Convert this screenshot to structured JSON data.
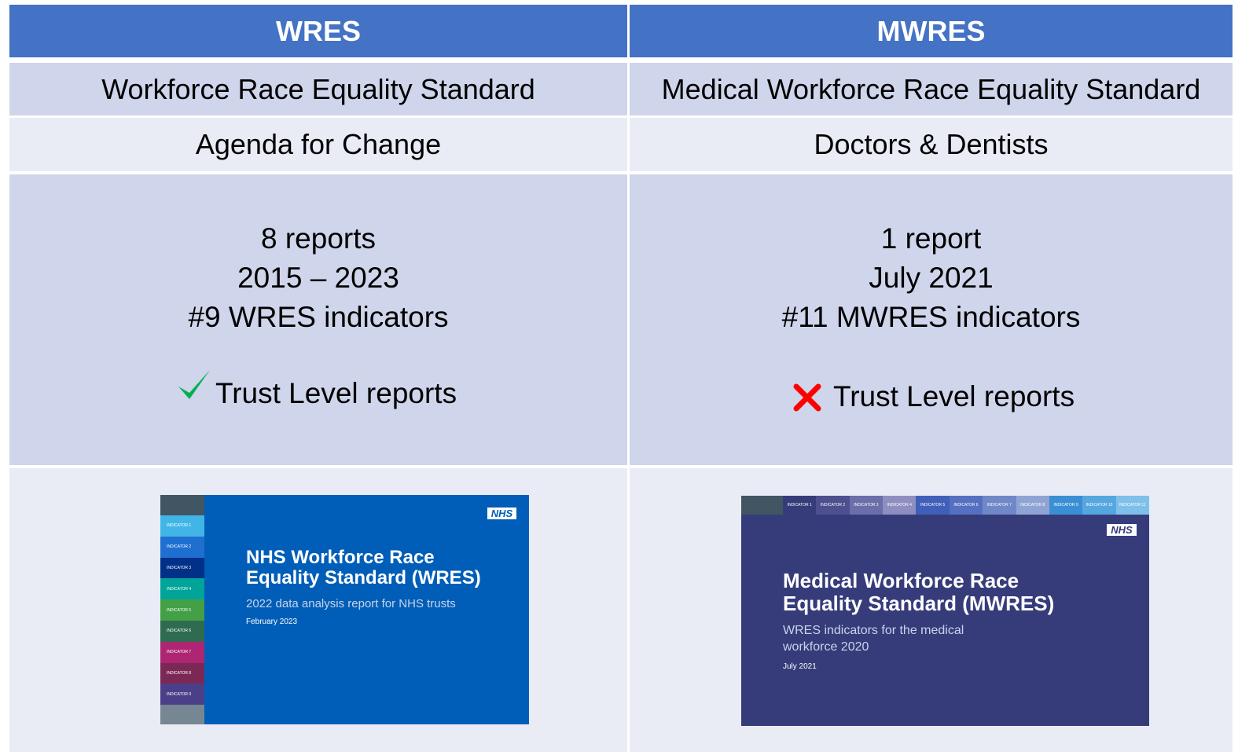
{
  "table": {
    "header": [
      "WRES",
      "MWRES"
    ],
    "rows": [
      [
        "Workforce Race Equality Standard",
        "Medical Workforce Race Equality Standard"
      ],
      [
        "Agenda for Change",
        "Doctors & Dentists"
      ]
    ],
    "details": [
      {
        "lines": [
          "8 reports",
          "2015 – 2023",
          "#9 WRES indicators"
        ],
        "trust_level": "Trust Level reports"
      },
      {
        "lines": [
          "1 report",
          "July 2021",
          "#11 MWRES indicators"
        ],
        "trust_level": "Trust Level reports"
      }
    ]
  },
  "covers": [
    {
      "logo": "NHS",
      "title": [
        "NHS Workforce Race",
        "Equality Standard (WRES)"
      ],
      "subtitle": [
        "2022 data analysis report for NHS trusts"
      ],
      "date": "February 2023",
      "indicators": [
        "INDICATOR 1",
        "INDICATOR 2",
        "INDICATOR 3",
        "INDICATOR 4",
        "INDICATOR 5",
        "INDICATOR 6",
        "INDICATOR 7",
        "INDICATOR 8",
        "INDICATOR 9"
      ]
    },
    {
      "logo": "NHS",
      "title": [
        "Medical Workforce Race",
        "Equality Standard (MWRES)"
      ],
      "subtitle": [
        "WRES indicators for the medical",
        "workforce 2020"
      ],
      "date": "July 2021",
      "indicators": [
        "INDICATOR 1",
        "INDICATOR 2",
        "INDICATOR 3",
        "INDICATOR 4",
        "INDICATOR 5",
        "INDICATOR 6",
        "INDICATOR 7",
        "INDICATOR 8",
        "INDICATOR 9",
        "INDICATOR 10",
        "INDICATOR 11"
      ]
    }
  ]
}
